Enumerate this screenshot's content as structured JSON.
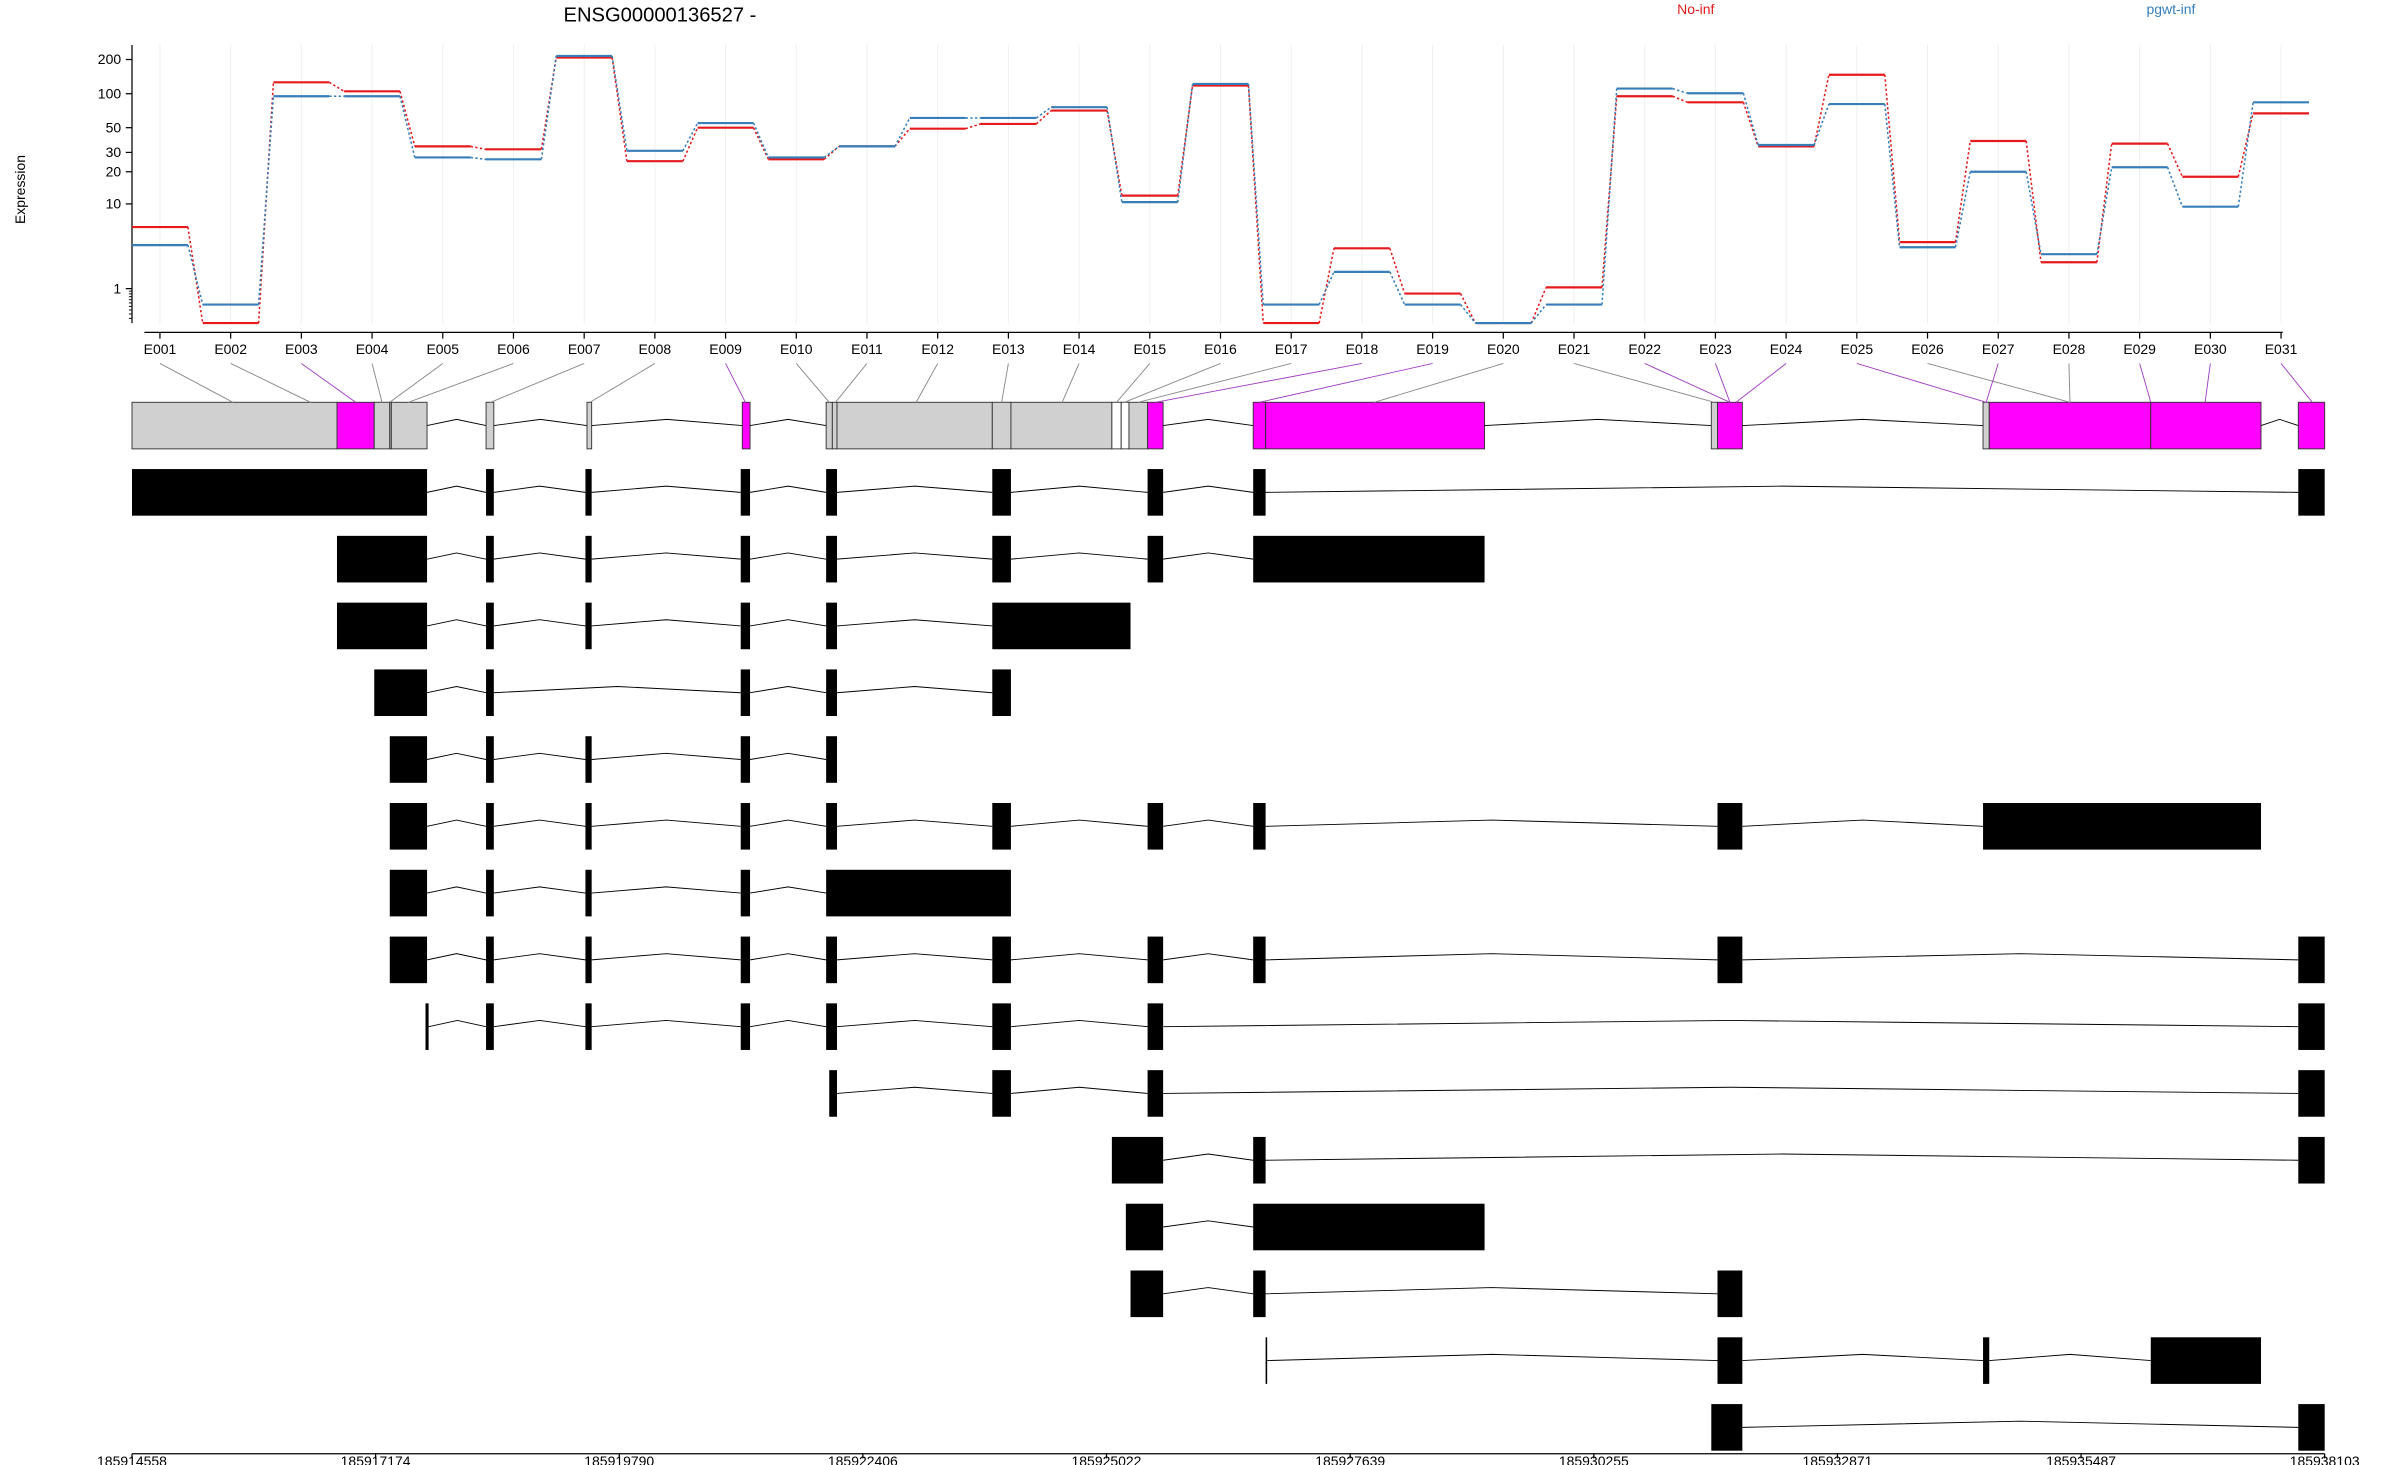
{
  "chart_data": {
    "type": "line",
    "title": "ENSG00000136527 -",
    "y_label": "Expression",
    "yscale": "log1p",
    "categories": [
      "E001",
      "E002",
      "E003",
      "E004",
      "E005",
      "E006",
      "E007",
      "E008",
      "E009",
      "E010",
      "E011",
      "E012",
      "E013",
      "E014",
      "E015",
      "E016",
      "E017",
      "E018",
      "E019",
      "E020",
      "E021",
      "E022",
      "E023",
      "E024",
      "E025",
      "E026",
      "E027",
      "E028",
      "E029",
      "E030",
      "E031"
    ],
    "series": [
      {
        "name": "No-inf",
        "color": "#e41a1c",
        "values": [
          5.9,
          0,
          126,
          105,
          34,
          32,
          208,
          25,
          50,
          26,
          34,
          49,
          54,
          71,
          12,
          118,
          0,
          3.5,
          0.81,
          0,
          1.05,
          95,
          84,
          34,
          147,
          4.1,
          38,
          2.4,
          36,
          18,
          67
        ]
      },
      {
        "name": "pgwt-inf",
        "color": "#377eb8",
        "values": [
          3.8,
          0.45,
          95,
          95,
          27,
          26,
          215,
          31,
          55,
          27,
          34,
          61,
          61,
          76,
          10.4,
          122,
          0.45,
          1.8,
          0.45,
          0,
          0.45,
          111,
          101,
          35,
          81,
          3.6,
          20,
          3.0,
          22,
          9.4,
          84
        ]
      }
    ],
    "ylim": [
      0,
      268
    ],
    "yticks": [
      1,
      10,
      20,
      30,
      50,
      100,
      200
    ],
    "grid": true,
    "genome_xlim": [
      185914558,
      185938103
    ],
    "genome_xticks": [
      185914558,
      185917174,
      185919790,
      185922406,
      185925022,
      185927639,
      185930255,
      185932871,
      185935487,
      185938103
    ]
  }
}
